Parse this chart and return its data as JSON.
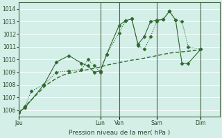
{
  "title": "Pression niveau de la mer( hPa )",
  "bg_color": "#d4eee8",
  "grid_color": "#ffffff",
  "line_color": "#2d6a2d",
  "ylim": [
    1005.5,
    1014.5
  ],
  "yticks": [
    1006,
    1007,
    1008,
    1009,
    1010,
    1011,
    1012,
    1013,
    1014
  ],
  "day_labels": [
    "Jeu",
    "Lun",
    "Ven",
    "Sam",
    "Dim"
  ],
  "day_x": [
    0,
    13,
    16,
    22,
    29
  ],
  "xmax": 32,
  "line1_x": [
    0,
    1,
    2,
    4,
    6,
    8,
    10,
    11,
    12,
    13,
    14,
    16,
    17,
    18,
    19,
    20,
    21,
    22,
    23,
    24,
    25,
    26,
    27,
    29
  ],
  "line1_y": [
    1005.8,
    1006.3,
    1007.5,
    1008.0,
    1009.0,
    1009.1,
    1009.2,
    1010.0,
    1009.5,
    1009.0,
    1010.4,
    1012.1,
    1013.05,
    1013.2,
    1011.1,
    1010.8,
    1011.8,
    1013.0,
    1013.15,
    1013.8,
    1013.1,
    1013.0,
    1011.0,
    1010.8
  ],
  "line2_x": [
    0,
    1,
    4,
    6,
    8,
    10,
    11,
    12,
    13,
    14,
    16,
    17,
    18,
    19,
    20,
    21,
    22,
    23,
    24,
    25,
    26,
    27,
    29
  ],
  "line2_y": [
    1005.8,
    1006.2,
    1008.0,
    1009.8,
    1010.3,
    1009.7,
    1009.5,
    1009.0,
    1009.1,
    1010.4,
    1012.7,
    1013.05,
    1013.2,
    1011.2,
    1011.8,
    1013.0,
    1013.1,
    1013.15,
    1013.8,
    1013.1,
    1009.7,
    1009.7,
    1010.8
  ],
  "line3_x": [
    0,
    1,
    2,
    3,
    4,
    5,
    6,
    7,
    8,
    9,
    10,
    11,
    12,
    13,
    14,
    15,
    16,
    17,
    18,
    19,
    20,
    21,
    22,
    23,
    24,
    25,
    26,
    27,
    28,
    29
  ],
  "line3_y": [
    1005.8,
    1006.3,
    1006.8,
    1007.3,
    1007.8,
    1008.2,
    1008.5,
    1008.75,
    1008.9,
    1009.0,
    1009.1,
    1009.2,
    1009.3,
    1009.4,
    1009.55,
    1009.65,
    1009.75,
    1009.85,
    1009.95,
    1010.0,
    1010.1,
    1010.2,
    1010.3,
    1010.4,
    1010.5,
    1010.55,
    1010.6,
    1010.65,
    1010.7,
    1010.75
  ]
}
